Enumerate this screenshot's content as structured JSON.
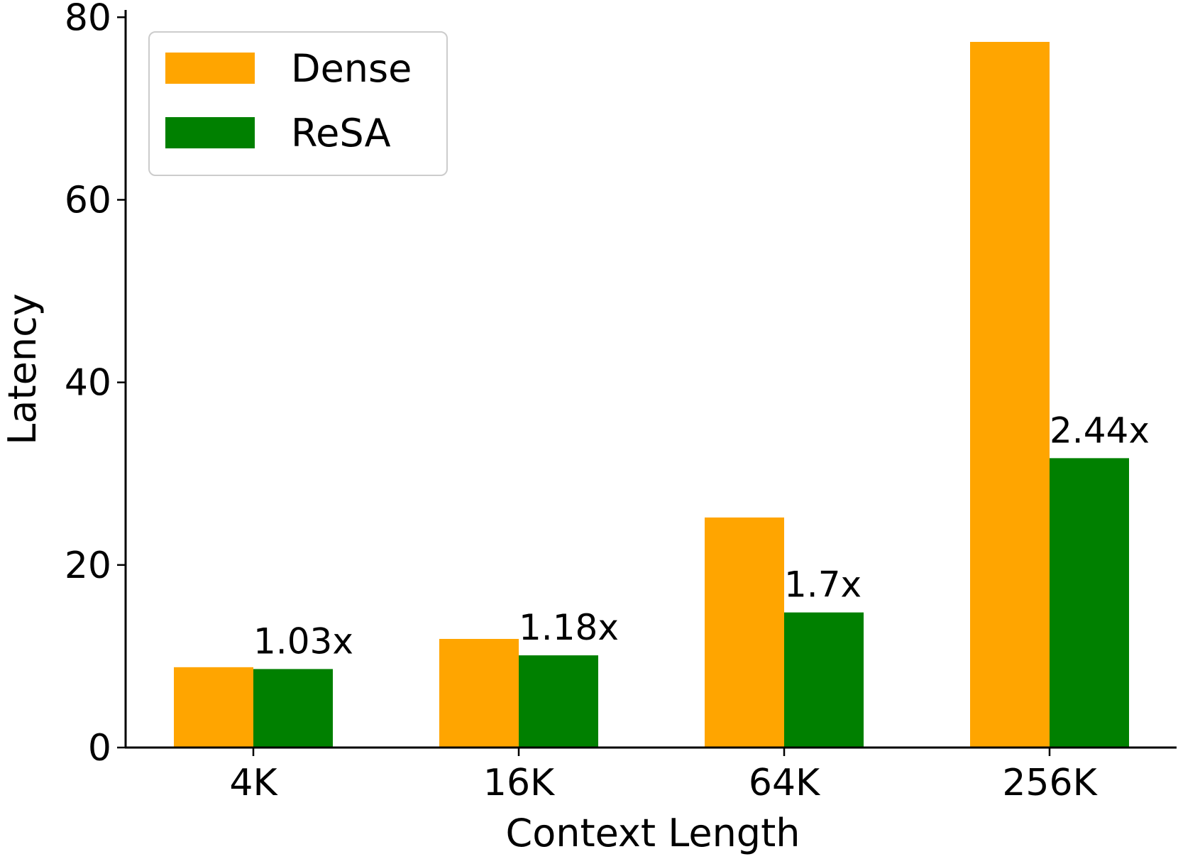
{
  "chart_data": {
    "type": "bar",
    "title": "",
    "xlabel": "Context Length",
    "ylabel": "Latency",
    "categories": [
      "4K",
      "16K",
      "64K",
      "256K"
    ],
    "series": [
      {
        "name": "Dense",
        "color": "#FFA500",
        "values": [
          8.8,
          11.9,
          25.2,
          77.3
        ]
      },
      {
        "name": "ReSA",
        "color": "#008000",
        "values": [
          8.6,
          10.1,
          14.8,
          31.7
        ]
      }
    ],
    "annotations": [
      "1.03x",
      "1.18x",
      "1.7x",
      "2.44x"
    ],
    "ylim": [
      0,
      80.8
    ],
    "yticks": [
      0,
      20,
      40,
      60,
      80
    ],
    "grid": false,
    "legend_position": "top-left"
  }
}
